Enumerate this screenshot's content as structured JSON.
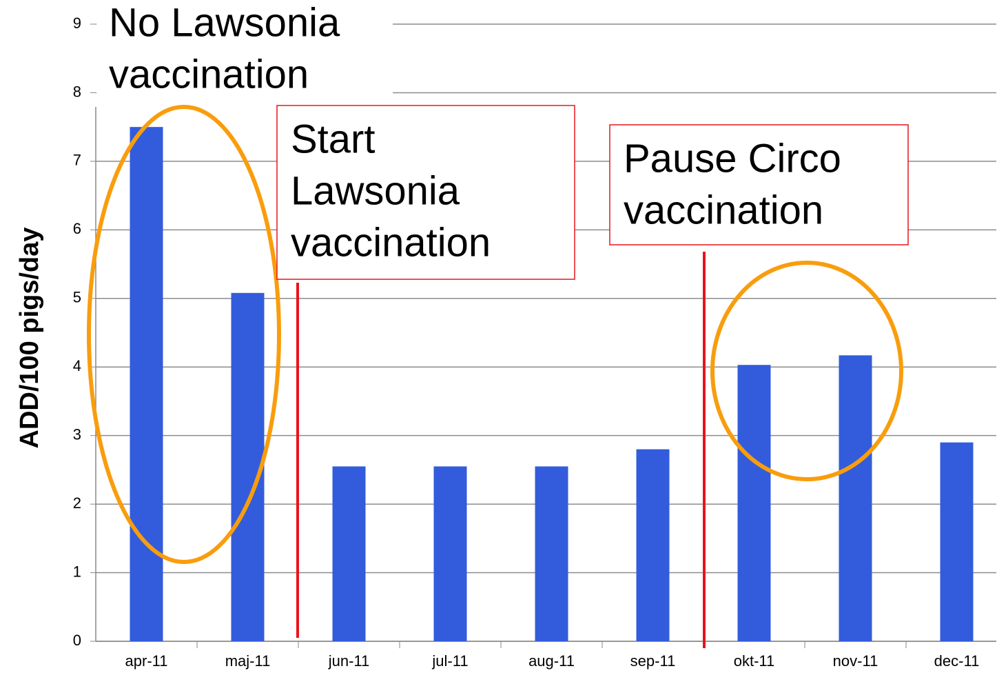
{
  "chart_data": {
    "type": "bar",
    "y_label": "ADD/100 pigs/day",
    "categories": [
      "apr-11",
      "maj-11",
      "jun-11",
      "jul-11",
      "aug-11",
      "sep-11",
      "okt-11",
      "nov-11",
      "dec-11"
    ],
    "values": [
      7.5,
      5.08,
      2.55,
      2.55,
      2.55,
      2.8,
      4.03,
      4.17,
      2.9
    ],
    "color": "#325cdb",
    "ylim": [
      0,
      9
    ],
    "yticks": [
      0,
      1,
      2,
      3,
      4,
      5,
      6,
      7,
      8,
      9
    ],
    "grid": true,
    "annotations": [
      {
        "lines": [
          "No Lawsonia",
          "vaccination"
        ]
      },
      {
        "lines": [
          "Start",
          "Lawsonia",
          "vaccination"
        ]
      },
      {
        "lines": [
          "Pause Circo",
          "vaccination"
        ]
      }
    ]
  }
}
